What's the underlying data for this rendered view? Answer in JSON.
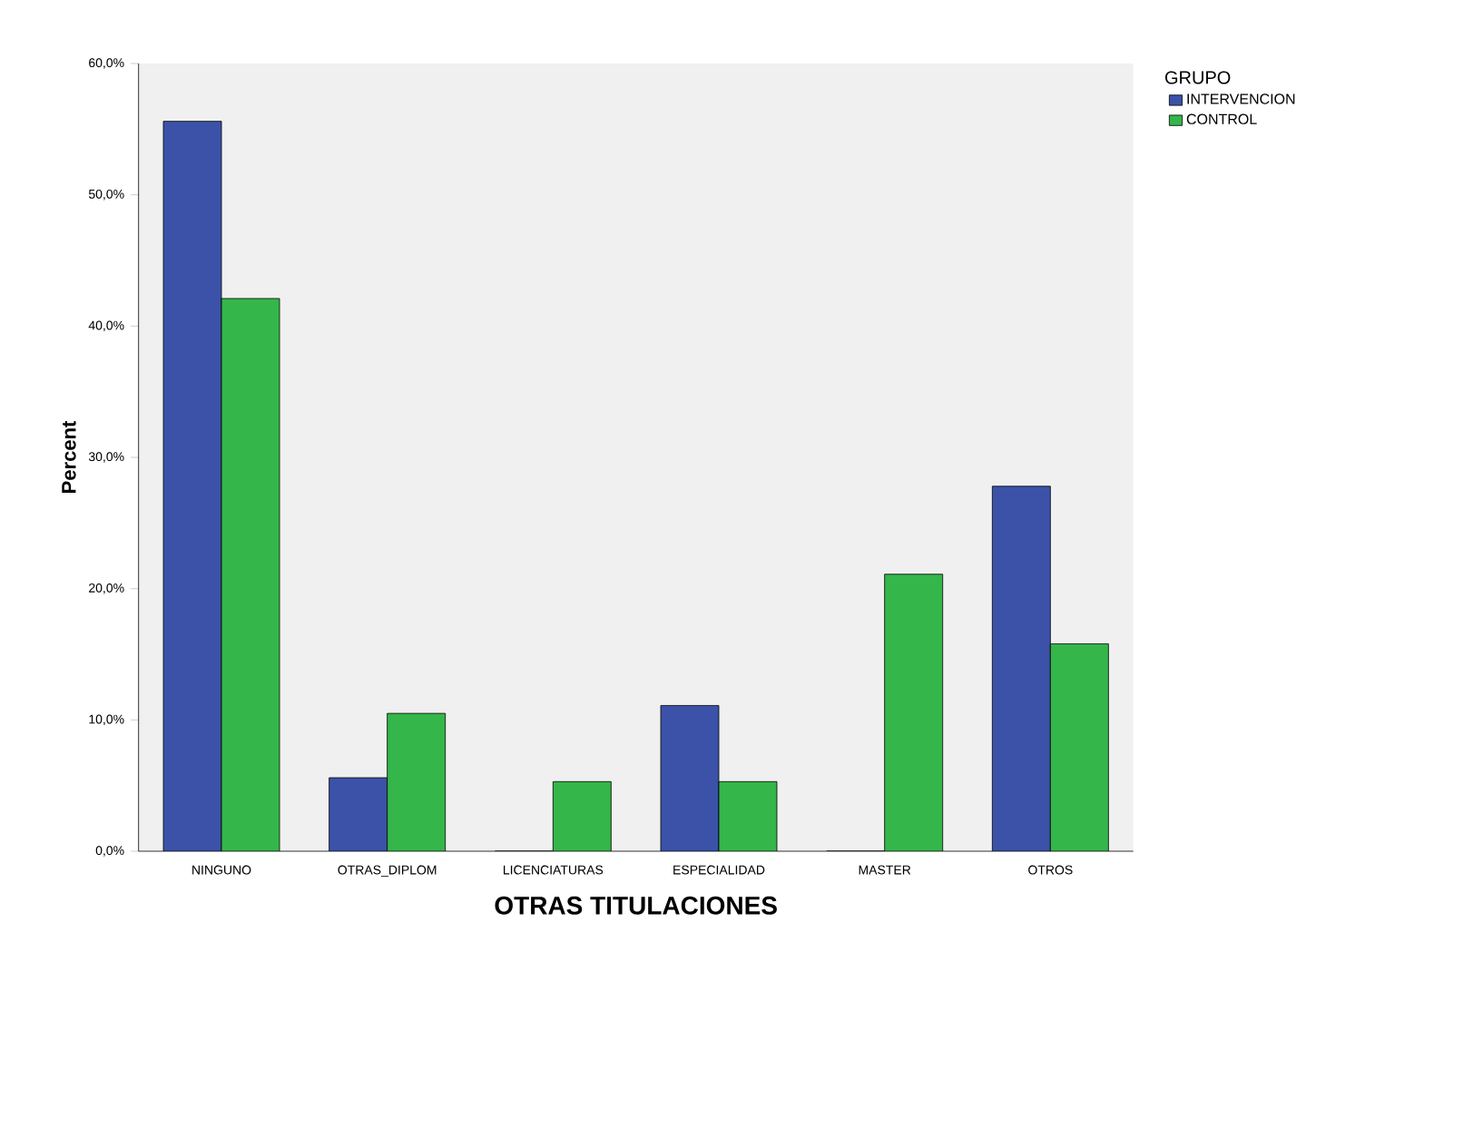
{
  "chart_data": {
    "type": "bar",
    "xlabel": "OTRAS TITULACIONES",
    "ylabel": "Percent",
    "legend_title": "GRUPO",
    "categories": [
      "NINGUNO",
      "OTRAS_DIPLOM",
      "LICENCIATURAS",
      "ESPECIALIDAD",
      "MASTER",
      "OTROS"
    ],
    "series": [
      {
        "name": "INTERVENCION",
        "color": "#3b52a8",
        "values": [
          55.6,
          5.6,
          0,
          11.1,
          0,
          27.8
        ]
      },
      {
        "name": "CONTROL",
        "color": "#34b64a",
        "values": [
          42.1,
          10.5,
          5.3,
          5.3,
          21.1,
          15.8
        ]
      }
    ],
    "ylim": [
      0,
      60
    ],
    "yticks": [
      {
        "value": 0,
        "label": "0,0%"
      },
      {
        "value": 10,
        "label": "10,0%"
      },
      {
        "value": 20,
        "label": "20,0%"
      },
      {
        "value": 30,
        "label": "30,0%"
      },
      {
        "value": 40,
        "label": "40,0%"
      },
      {
        "value": 50,
        "label": "50,0%"
      },
      {
        "value": 60,
        "label": "60,0%"
      }
    ],
    "grid": false,
    "legend": "top right"
  }
}
